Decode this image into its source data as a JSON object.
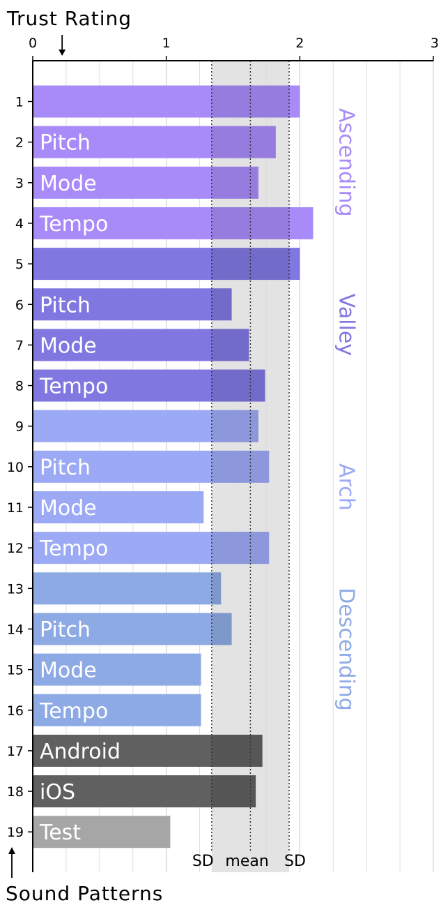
{
  "chart_data": {
    "type": "bar",
    "orientation": "horizontal",
    "xlabel": "Trust Rating",
    "ylabel": "Sound Patterns",
    "xlim": [
      0,
      3
    ],
    "xticks": [
      0,
      1,
      2,
      3
    ],
    "grid": true,
    "categories": [
      "1",
      "2",
      "3",
      "4",
      "5",
      "6",
      "7",
      "8",
      "9",
      "10",
      "11",
      "12",
      "13",
      "14",
      "15",
      "16",
      "17",
      "18",
      "19"
    ],
    "values": [
      2.0,
      1.82,
      1.69,
      2.1,
      2.0,
      1.49,
      1.62,
      1.74,
      1.69,
      1.77,
      1.28,
      1.77,
      1.41,
      1.49,
      1.26,
      1.26,
      1.72,
      1.67,
      1.03
    ],
    "bar_labels": [
      "",
      "Pitch",
      "Mode",
      "Tempo",
      "",
      "Pitch",
      "Mode",
      "Tempo",
      "",
      "Pitch",
      "Mode",
      "Tempo",
      "",
      "Pitch",
      "Mode",
      "Tempo",
      "Android",
      "iOS",
      "Test"
    ],
    "bar_colors": [
      "#a88bf8",
      "#a88bf8",
      "#a88bf8",
      "#a88bf8",
      "#8078e0",
      "#8078e0",
      "#8078e0",
      "#8078e0",
      "#9ca9f5",
      "#9ca9f5",
      "#9ca9f5",
      "#9ca9f5",
      "#8eaae4",
      "#8eaae4",
      "#8eaae4",
      "#8eaae4",
      "#606060",
      "#606060",
      "#a6a6a6"
    ],
    "groups": [
      {
        "name": "Ascending",
        "color": "#a88bf8",
        "rows": [
          1,
          4
        ]
      },
      {
        "name": "Valley",
        "color": "#8078e0",
        "rows": [
          5,
          8
        ]
      },
      {
        "name": "Arch",
        "color": "#9ca9f5",
        "rows": [
          9,
          12
        ]
      },
      {
        "name": "Descending",
        "color": "#8eaae4",
        "rows": [
          13,
          16
        ]
      }
    ],
    "reference": {
      "mean": 1.63,
      "sd_low": 1.34,
      "sd_high": 1.92,
      "band_color": "#e3e3e3",
      "labels": {
        "sd_low": "SD",
        "mean": "mean",
        "sd_high": "SD"
      }
    },
    "axis_marker": {
      "value": 0.22,
      "direction": "down"
    },
    "ylabel_marker": {
      "direction": "up"
    }
  }
}
